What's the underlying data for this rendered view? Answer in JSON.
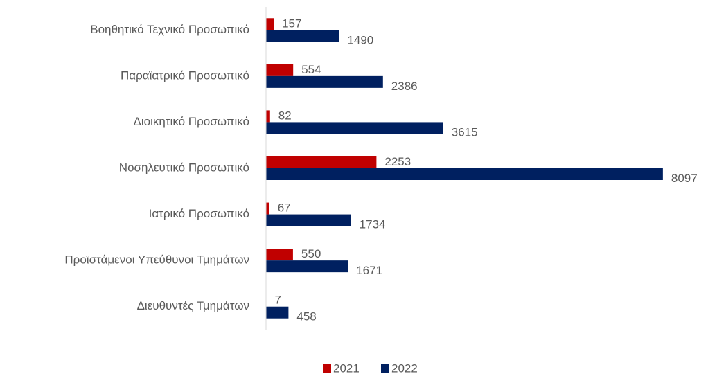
{
  "chart_data": {
    "type": "bar",
    "orientation": "horizontal",
    "categories": [
      "Βοηθητικό Τεχνικό Προσωπικό",
      "Παραϊατρικό Προσωπικό",
      "Διοικητικό Προσωπικό",
      "Νοσηλευτικό Προσωπικό",
      "Ιατρικό Προσωπικό",
      "Προϊστάμενοι Υπεύθυνοι Τμημάτων",
      "Διευθυντές Τμημάτων"
    ],
    "series": [
      {
        "name": "2021",
        "color": "#c00000",
        "values": [
          157,
          554,
          82,
          2253,
          67,
          550,
          7
        ]
      },
      {
        "name": "2022",
        "color": "#002060",
        "values": [
          1490,
          2386,
          3615,
          8097,
          1734,
          1671,
          458
        ]
      }
    ],
    "xlim": [
      0,
      8000
    ],
    "legend": "bottom"
  }
}
